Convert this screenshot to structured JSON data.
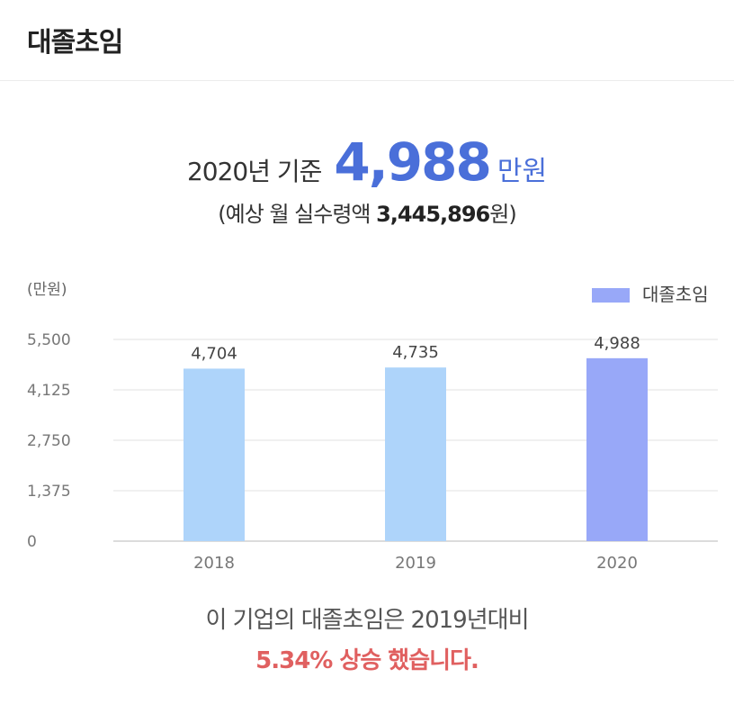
{
  "header": {
    "title": "대졸초임"
  },
  "summary": {
    "basis": "2020년 기준",
    "amount": "4,988",
    "unit": "만원",
    "monthly_prefix": "(예상 월 실수령액 ",
    "monthly_value": "3,445,896",
    "monthly_suffix": "원)"
  },
  "chart_data": {
    "type": "bar",
    "unit_label": "(만원)",
    "categories": [
      "2018",
      "2019",
      "2020"
    ],
    "series": [
      {
        "name": "대졸초임",
        "values": [
          4704,
          4735,
          4988
        ]
      }
    ],
    "value_labels": [
      "4,704",
      "4,735",
      "4,988"
    ],
    "yticks": [
      0,
      1375,
      2750,
      4125,
      5500
    ],
    "ytick_labels": [
      "0",
      "1,375",
      "2,750",
      "4,125",
      "5,500"
    ],
    "ylim": [
      0,
      5500
    ],
    "grid": true,
    "legend": "top-right",
    "colors": {
      "past": "#aed4fa",
      "current": "#98a8f8",
      "legend": "#98a8f8"
    }
  },
  "footer": {
    "line1": "이 기업의 대졸초임은 2019년대비",
    "line2": "5.34% 상승 했습니다."
  }
}
